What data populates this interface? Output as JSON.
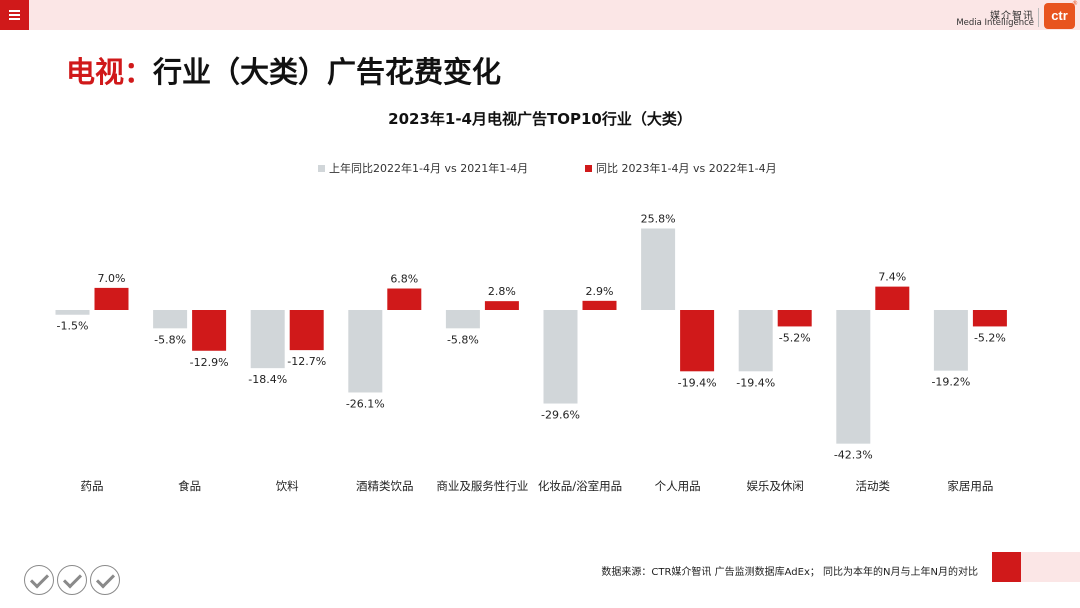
{
  "header": {
    "logo_cn": "媒介智讯",
    "logo_en": "Media Intelligence",
    "logo_mark": "ctr"
  },
  "page_title": {
    "prefix": "电视：",
    "main": "行业（大类）广告花费变化"
  },
  "chart_data": {
    "type": "bar",
    "title": "2023年1-4月电视广告TOP10行业（大类）",
    "categories": [
      "药品",
      "食品",
      "饮料",
      "酒精类饮品",
      "商业及服务性行业",
      "化妆品/浴室用品",
      "个人用品",
      "娱乐及休闲",
      "活动类",
      "家居用品"
    ],
    "series": [
      {
        "name": "上年同比2022年1-4月  vs  2021年1-4月",
        "color": "#d1d6d9",
        "values": [
          -1.5,
          -5.8,
          -18.4,
          -26.1,
          -5.8,
          -29.6,
          25.8,
          -19.4,
          -42.3,
          -19.2
        ]
      },
      {
        "name": "同比 2023年1-4月  vs  2022年1-4月",
        "color": "#d0191a",
        "values": [
          7.0,
          -12.9,
          -12.7,
          6.8,
          2.8,
          2.9,
          -19.4,
          -5.2,
          7.4,
          -5.2
        ]
      }
    ],
    "value_suffix": "%",
    "legend": "top-center"
  },
  "footer": {
    "source": "数据来源：CTR媒介智讯 广告监测数据库AdEx；  同比为本年的N月与上年N月的对比"
  }
}
